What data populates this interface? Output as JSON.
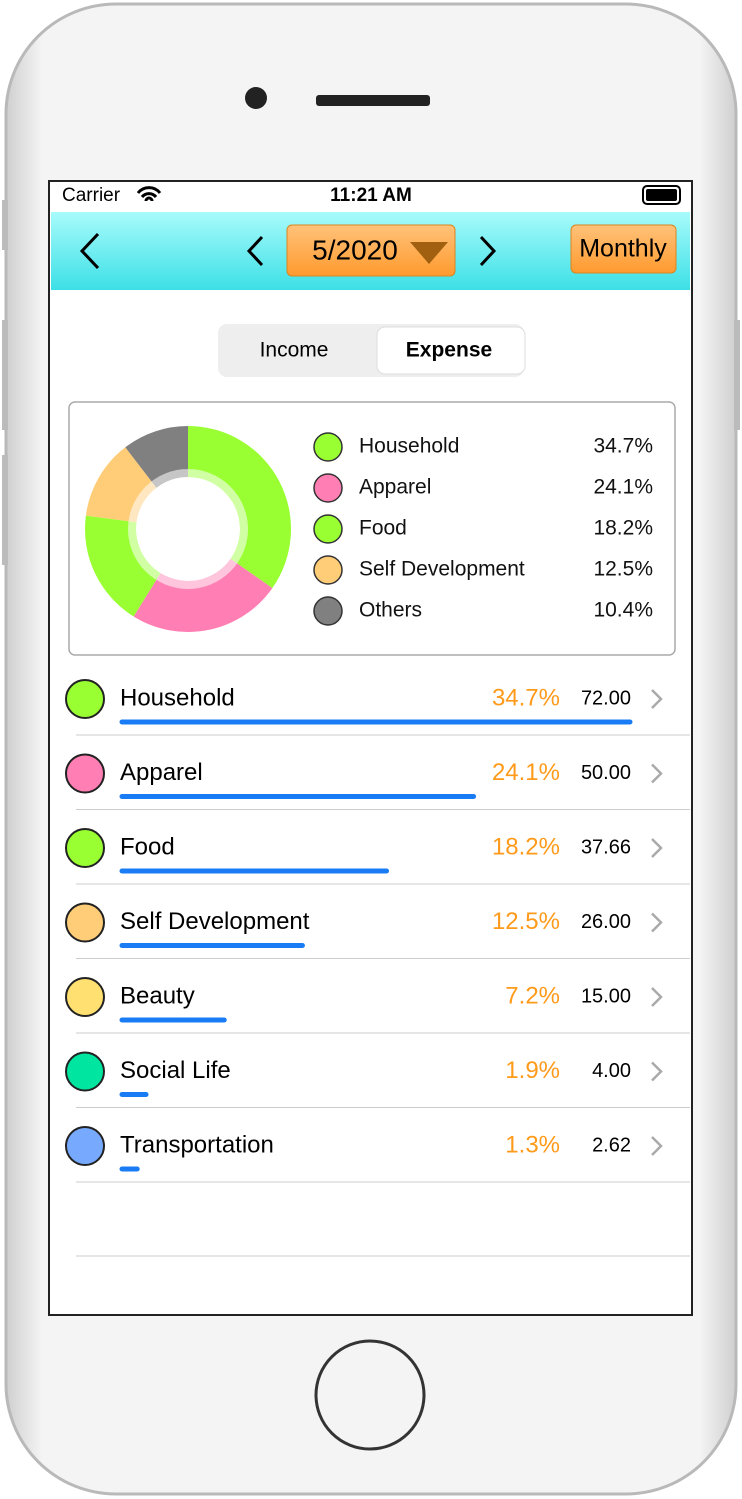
{
  "status_bar": {
    "carrier": "Carrier",
    "time": "11:21 AM"
  },
  "nav_bar": {
    "period": "5/2020",
    "mode_button": "Monthly"
  },
  "segmented_control": {
    "options": [
      "Income",
      "Expense"
    ],
    "selected": 1
  },
  "summary_card": {
    "items": [
      {
        "name": "Household",
        "color": "#99ff33",
        "value": 34.7,
        "value_label": "34.7%"
      },
      {
        "name": "Apparel",
        "color": "#ff7eb3",
        "value": 24.1,
        "value_label": "24.1%"
      },
      {
        "name": "Food",
        "color": "#99ff33",
        "value": 18.2,
        "value_label": "18.2%"
      },
      {
        "name": "Self Development",
        "color": "#ffcc77",
        "value": 12.5,
        "value_label": "12.5%"
      },
      {
        "name": "Others",
        "color": "#808080",
        "value": 10.4,
        "value_label": "10.4%"
      }
    ]
  },
  "list": {
    "rows": [
      {
        "name": "Household",
        "color": "#99ff33",
        "percent": 34.7,
        "percent_label": "34.7%",
        "amount": "72.00"
      },
      {
        "name": "Apparel",
        "color": "#ff7eb3",
        "percent": 24.1,
        "percent_label": "24.1%",
        "amount": "50.00"
      },
      {
        "name": "Food",
        "color": "#99ff33",
        "percent": 18.2,
        "percent_label": "18.2%",
        "amount": "37.66"
      },
      {
        "name": "Self Development",
        "color": "#ffcc77",
        "percent": 12.5,
        "percent_label": "12.5%",
        "amount": "26.00"
      },
      {
        "name": "Beauty",
        "color": "#ffe070",
        "percent": 7.2,
        "percent_label": "7.2%",
        "amount": "15.00"
      },
      {
        "name": "Social Life",
        "color": "#00e5a0",
        "percent": 1.9,
        "percent_label": "1.9%",
        "amount": "4.00"
      },
      {
        "name": "Transportation",
        "color": "#77aaff",
        "percent": 1.3,
        "percent_label": "1.3%",
        "amount": "2.62"
      }
    ]
  }
}
